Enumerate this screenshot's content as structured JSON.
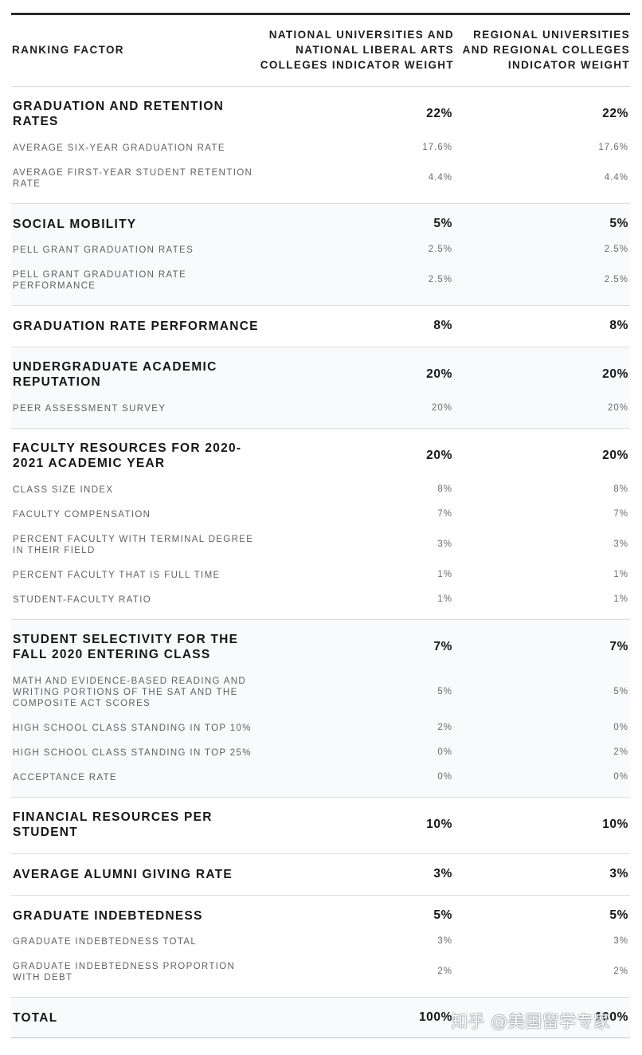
{
  "header": {
    "col1": "RANKING FACTOR",
    "col2": "NATIONAL UNIVERSITIES AND\nNATIONAL LIBERAL ARTS\nCOLLEGES INDICATOR WEIGHT",
    "col3": "REGIONAL UNIVERSITIES\nAND REGIONAL COLLEGES\nINDICATOR WEIGHT"
  },
  "groups": [
    {
      "name": "GRADUATION AND RETENTION\nRATES",
      "national": "22%",
      "regional": "22%",
      "subs": [
        {
          "name": "AVERAGE SIX-YEAR GRADUATION RATE",
          "national": "17.6%",
          "regional": "17.6%"
        },
        {
          "name": "AVERAGE FIRST-YEAR STUDENT RETENTION\nRATE",
          "national": "4.4%",
          "regional": "4.4%"
        }
      ]
    },
    {
      "name": "SOCIAL MOBILITY",
      "national": "5%",
      "regional": "5%",
      "subs": [
        {
          "name": "PELL GRANT GRADUATION RATES",
          "national": "2.5%",
          "regional": "2.5%"
        },
        {
          "name": "PELL GRANT GRADUATION RATE\nPERFORMANCE",
          "national": "2.5%",
          "regional": "2.5%"
        }
      ]
    },
    {
      "name": "GRADUATION RATE PERFORMANCE",
      "national": "8%",
      "regional": "8%",
      "subs": []
    },
    {
      "name": "UNDERGRADUATE ACADEMIC\nREPUTATION",
      "national": "20%",
      "regional": "20%",
      "subs": [
        {
          "name": "PEER ASSESSMENT SURVEY",
          "national": "20%",
          "regional": "20%"
        }
      ]
    },
    {
      "name": "FACULTY RESOURCES FOR 2020-\n2021 ACADEMIC YEAR",
      "national": "20%",
      "regional": "20%",
      "subs": [
        {
          "name": "CLASS SIZE INDEX",
          "national": "8%",
          "regional": "8%"
        },
        {
          "name": "FACULTY COMPENSATION",
          "national": "7%",
          "regional": "7%"
        },
        {
          "name": "PERCENT FACULTY WITH TERMINAL DEGREE\nIN THEIR FIELD",
          "national": "3%",
          "regional": "3%"
        },
        {
          "name": "PERCENT FACULTY THAT IS FULL TIME",
          "national": "1%",
          "regional": "1%"
        },
        {
          "name": "STUDENT-FACULTY RATIO",
          "national": "1%",
          "regional": "1%"
        }
      ]
    },
    {
      "name": "STUDENT SELECTIVITY FOR THE\nFALL 2020 ENTERING CLASS",
      "national": "7%",
      "regional": "7%",
      "subs": [
        {
          "name": "MATH AND EVIDENCE-BASED READING AND\nWRITING PORTIONS OF THE SAT AND THE\nCOMPOSITE ACT SCORES",
          "national": "5%",
          "regional": "5%"
        },
        {
          "name": "HIGH SCHOOL CLASS STANDING IN TOP 10%",
          "national": "2%",
          "regional": "0%"
        },
        {
          "name": "HIGH SCHOOL CLASS STANDING IN TOP 25%",
          "national": "0%",
          "regional": "2%"
        },
        {
          "name": "ACCEPTANCE RATE",
          "national": "0%",
          "regional": "0%"
        }
      ]
    },
    {
      "name": "FINANCIAL RESOURCES PER\nSTUDENT",
      "national": "10%",
      "regional": "10%",
      "subs": []
    },
    {
      "name": "AVERAGE ALUMNI GIVING RATE",
      "national": "3%",
      "regional": "3%",
      "subs": []
    },
    {
      "name": "GRADUATE INDEBTEDNESS",
      "national": "5%",
      "regional": "5%",
      "subs": [
        {
          "name": "GRADUATE INDEBTEDNESS TOTAL",
          "national": "3%",
          "regional": "3%"
        },
        {
          "name": "GRADUATE INDEBTEDNESS PROPORTION\nWITH DEBT",
          "national": "2%",
          "regional": "2%"
        }
      ]
    },
    {
      "name": "TOTAL",
      "national": "100%",
      "regional": "100%",
      "subs": []
    }
  ],
  "watermark": "知乎 @美国留学专家"
}
